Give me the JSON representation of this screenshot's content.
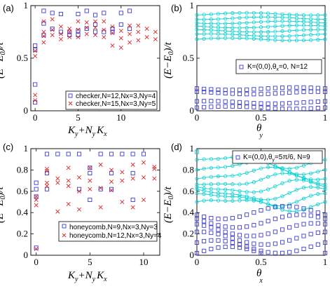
{
  "chart_data": [
    {
      "panel": "(a)",
      "type": "scatter",
      "xlabel_parts": [
        "K",
        "y",
        "+N",
        "y",
        "K",
        "x"
      ],
      "ylabel_parts": [
        "(E−E",
        "0",
        ")/t"
      ],
      "xlim": [
        -0.5,
        14.5
      ],
      "ylim": [
        0,
        1
      ],
      "xticks": [
        0,
        5,
        10
      ],
      "yticks": [
        0,
        0.5,
        1
      ],
      "ytick_labels": [
        "0",
        "0.5",
        "1"
      ],
      "series": [
        {
          "name": "checker,N=12,Nx=3,Ny=4",
          "marker": "square",
          "color": "#3b3bd6",
          "points": [
            [
              0,
              0.08
            ],
            [
              0,
              0.25
            ],
            [
              0,
              0.58
            ],
            [
              0,
              0.62
            ],
            [
              1,
              0.72
            ],
            [
              1,
              0.83
            ],
            [
              1,
              0.95
            ],
            [
              2,
              0.78
            ],
            [
              2,
              0.93
            ],
            [
              3,
              0.75
            ],
            [
              3,
              0.92
            ],
            [
              4,
              0.72
            ],
            [
              4,
              0.75
            ],
            [
              5,
              0.72
            ],
            [
              5,
              0.76
            ],
            [
              5,
              0.92
            ],
            [
              6,
              0.78
            ],
            [
              6,
              0.95
            ],
            [
              7,
              0.75
            ],
            [
              7,
              0.82
            ],
            [
              7,
              0.91
            ],
            [
              8,
              0.75
            ],
            [
              8,
              0.93
            ],
            [
              9,
              0.75
            ],
            [
              9,
              0.78
            ],
            [
              10,
              0.82
            ],
            [
              10,
              0.93
            ],
            [
              11,
              0.78
            ],
            [
              11,
              0.95
            ]
          ]
        },
        {
          "name": "checker,N=15,Nx=3,Ny=5",
          "marker": "x",
          "color": "#d62728",
          "points": [
            [
              0,
              0.1
            ],
            [
              0,
              0.15
            ],
            [
              0,
              0.52
            ],
            [
              0,
              0.57
            ],
            [
              1,
              0.65
            ],
            [
              1,
              0.71
            ],
            [
              1,
              0.75
            ],
            [
              1,
              0.85
            ],
            [
              2,
              0.72
            ],
            [
              2,
              0.77
            ],
            [
              2,
              0.87
            ],
            [
              3,
              0.68
            ],
            [
              3,
              0.73
            ],
            [
              3,
              0.8
            ],
            [
              4,
              0.7
            ],
            [
              4,
              0.75
            ],
            [
              4,
              0.78
            ],
            [
              5,
              0.7
            ],
            [
              5,
              0.77
            ],
            [
              5,
              0.85
            ],
            [
              6,
              0.73
            ],
            [
              6,
              0.79
            ],
            [
              6,
              0.84
            ],
            [
              7,
              0.72
            ],
            [
              7,
              0.79
            ],
            [
              7,
              0.85
            ],
            [
              8,
              0.7
            ],
            [
              8,
              0.77
            ],
            [
              8,
              0.85
            ],
            [
              9,
              0.62
            ],
            [
              9,
              0.74
            ],
            [
              9,
              0.8
            ],
            [
              10,
              0.6
            ],
            [
              10,
              0.69
            ],
            [
              10,
              0.76
            ],
            [
              11,
              0.65
            ],
            [
              11,
              0.73
            ],
            [
              11,
              0.81
            ],
            [
              12,
              0.67
            ],
            [
              12,
              0.75
            ],
            [
              12,
              0.81
            ],
            [
              13,
              0.7
            ],
            [
              13,
              0.78
            ],
            [
              14,
              0.68
            ],
            [
              14,
              0.75
            ]
          ]
        }
      ]
    },
    {
      "panel": "(b)",
      "type": "scatter",
      "xlabel_parts": [
        "θ",
        "y"
      ],
      "ylabel_parts": [
        "(E−E",
        "0",
        ")/t"
      ],
      "xlim": [
        0,
        1
      ],
      "ylim": [
        0,
        1
      ],
      "xticks": [
        0,
        0.5,
        1
      ],
      "xtick_labels": [
        "0",
        "0.5",
        "1"
      ],
      "yticks": [
        0,
        0.5,
        1
      ],
      "ytick_labels": [
        "0",
        "0.5",
        "1"
      ],
      "band_levels": [
        0.68,
        0.72,
        0.76,
        0.8,
        0.84,
        0.88,
        0.92
      ],
      "blue_levels": [
        0.03,
        0.08,
        0.17,
        0.21
      ],
      "legend": "K=(0,0),θx=0, N=12",
      "legend_parts": [
        "K=(0,0),θ",
        "x",
        "=0, N=12"
      ]
    },
    {
      "panel": "(c)",
      "type": "scatter",
      "xlabel_parts": [
        "K",
        "y",
        "+N",
        "y",
        "K",
        "x"
      ],
      "ylabel_parts": [
        "(E−E",
        "0",
        ")/t"
      ],
      "xlim": [
        -0.5,
        11.5
      ],
      "ylim": [
        0,
        1
      ],
      "xticks": [
        0,
        5,
        10
      ],
      "yticks": [
        0,
        0.2,
        0.4,
        0.6,
        0.8,
        1
      ],
      "ytick_labels": [
        "0",
        "0.2",
        "0.4",
        "0.6",
        "0.8",
        "1"
      ],
      "series": [
        {
          "name": "honeycomb,N=9,Nx=3,Ny=3",
          "marker": "square",
          "color": "#3b3bd6",
          "points": [
            [
              0,
              0.07
            ],
            [
              0,
              0.55
            ],
            [
              0,
              0.62
            ],
            [
              0,
              0.68
            ],
            [
              1,
              0.62
            ],
            [
              1,
              0.77
            ],
            [
              1,
              0.95
            ],
            [
              2,
              0.95
            ],
            [
              3,
              0.95
            ],
            [
              4,
              0.62
            ],
            [
              4,
              0.95
            ],
            [
              5,
              0.52
            ],
            [
              5,
              0.77
            ],
            [
              5,
              0.82
            ],
            [
              6,
              0.62
            ],
            [
              6,
              0.95
            ],
            [
              7,
              0.62
            ],
            [
              7,
              0.77
            ],
            [
              7,
              0.95
            ],
            [
              8,
              0.95
            ],
            [
              9,
              0.52
            ],
            [
              9,
              0.77
            ],
            [
              9,
              0.95
            ],
            [
              10,
              0.95
            ]
          ]
        },
        {
          "name": "honeycomb,N=12,Nx=3,Ny=4",
          "marker": "x",
          "color": "#d62728",
          "points": [
            [
              0,
              0.06
            ],
            [
              0,
              0.47
            ],
            [
              0,
              0.52
            ],
            [
              0,
              0.55
            ],
            [
              1,
              0.65
            ],
            [
              1,
              0.68
            ],
            [
              1,
              0.79
            ],
            [
              1,
              0.81
            ],
            [
              2,
              0.41
            ],
            [
              2,
              0.68
            ],
            [
              2,
              0.72
            ],
            [
              3,
              0.48
            ],
            [
              3,
              0.65
            ],
            [
              3,
              0.7
            ],
            [
              3,
              0.82
            ],
            [
              4,
              0.43
            ],
            [
              4,
              0.6
            ],
            [
              4,
              0.73
            ],
            [
              5,
              0.62
            ],
            [
              5,
              0.7
            ],
            [
              5,
              0.82
            ],
            [
              6,
              0.45
            ],
            [
              6,
              0.63
            ],
            [
              6,
              0.85
            ],
            [
              7,
              0.61
            ],
            [
              7,
              0.69
            ],
            [
              7,
              0.8
            ],
            [
              8,
              0.5
            ],
            [
              8,
              0.7
            ],
            [
              8,
              0.78
            ],
            [
              9,
              0.45
            ],
            [
              9,
              0.72
            ],
            [
              9,
              0.85
            ],
            [
              10,
              0.52
            ],
            [
              10,
              0.73
            ],
            [
              10,
              0.87
            ],
            [
              11,
              0.72
            ],
            [
              11,
              0.81
            ],
            [
              11,
              0.83
            ]
          ]
        }
      ]
    },
    {
      "panel": "(d)",
      "type": "scatter",
      "xlabel_parts": [
        "θ",
        "x"
      ],
      "ylabel_parts": [
        "(E−E",
        "0",
        ")/t"
      ],
      "xlim": [
        0,
        1
      ],
      "ylim": [
        0,
        1
      ],
      "xticks": [
        0,
        0.5,
        1
      ],
      "xtick_labels": [
        "0",
        "0.5",
        "1"
      ],
      "yticks": [
        0,
        0.2,
        0.4,
        0.6,
        0.8,
        1
      ],
      "ytick_labels": [
        "0",
        "0.2",
        "0.4",
        "0.6",
        "0.8",
        "1"
      ],
      "band_levels": [
        0.48,
        0.53,
        0.58,
        0.64,
        0.7,
        0.76,
        0.82,
        0.88
      ],
      "blue_low": [
        0.02,
        0.08,
        0.16,
        0.24,
        0.32,
        0.4
      ],
      "legend": "K=(0,0),θy=5π/6, N=9",
      "legend_parts": [
        "K=(0,0),θ",
        "y",
        "=5π/6, N=9"
      ]
    }
  ],
  "colors": {
    "blue": "#3b3bd6",
    "red": "#d62728",
    "cyan": "#00d2d2"
  },
  "panel_labels": [
    "(a)",
    "(b)",
    "(c)",
    "(d)"
  ]
}
